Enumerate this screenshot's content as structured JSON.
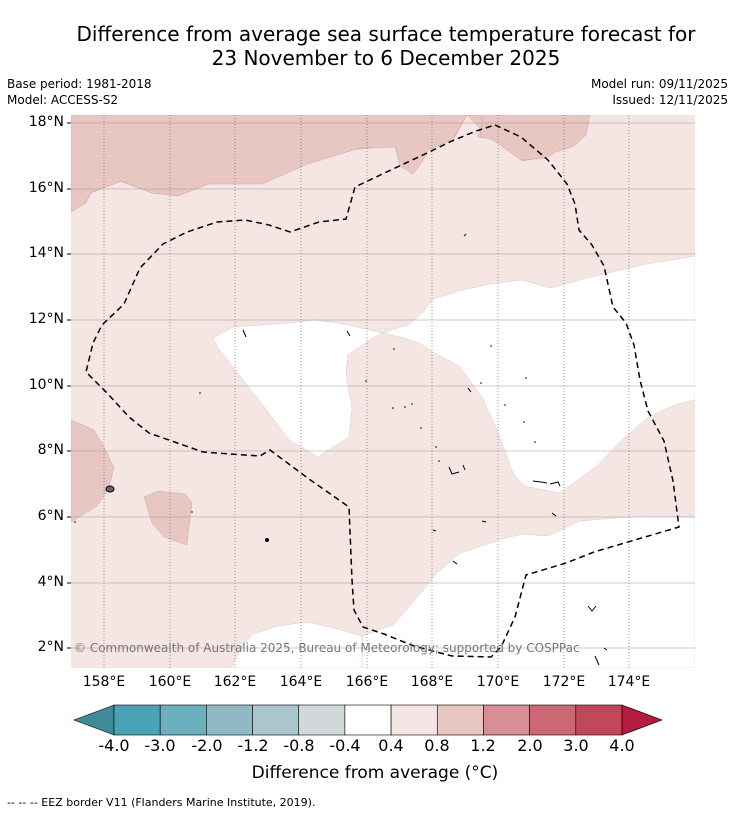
{
  "title_line1": "Difference from average sea surface temperature forecast for",
  "title_line2": "23 November to 6 December 2025",
  "base_period": "Base period: 1981-2018",
  "model": "Model: ACCESS-S2",
  "model_run": "Model run: 09/11/2025",
  "issued": "Issued: 12/11/2025",
  "lat_labels": [
    "18°N",
    "16°N",
    "14°N",
    "12°N",
    "10°N",
    "8°N",
    "6°N",
    "4°N",
    "2°N"
  ],
  "lon_labels": [
    "158°E",
    "160°E",
    "162°E",
    "164°E",
    "166°E",
    "168°E",
    "170°E",
    "172°E",
    "174°E"
  ],
  "copyright": "© Commonwealth of Australia 2025, Bureau of Meteorology; supported by COSPPac",
  "colorbar": {
    "title": "Difference from average (°C)",
    "tick_labels": [
      "-4.0",
      "-3.0",
      "-2.0",
      "-1.2",
      "-0.8",
      "-0.4",
      "0.4",
      "0.8",
      "1.2",
      "2.0",
      "3.0",
      "4.0"
    ],
    "colors": [
      "#3f8a96",
      "#4aa3b5",
      "#6bafbf",
      "#8fbac5",
      "#a8c6cb",
      "#d0d8da",
      "#ffffff",
      "#f5e6e4",
      "#e8c6c2",
      "#d98e96",
      "#cc6873",
      "#c04858",
      "#b31b3f"
    ]
  },
  "legend_note": "--  --  -- EEZ border V11 (Flanders Marine Institute, 2019).",
  "map_colors": {
    "warm_light": "#f5e6e4",
    "warm_medium": "#e8c6c2",
    "neutral": "#ffffff"
  },
  "map_data": {
    "lon_range": [
      157.0,
      176.0
    ],
    "lat_range": [
      1.4,
      18.4
    ],
    "regions": [
      {
        "category": "0.4 to 0.8",
        "area": "northern strip, 16-18°N, west of 169°E"
      },
      {
        "category": "0.4 to 0.8",
        "area": "northeast near 170-172°E, 17-18°N"
      },
      {
        "category": "0.4 to 0.8",
        "area": "western edge near 157-158°E, 7-9°N"
      },
      {
        "category": "0.4 to 0.8",
        "area": "patch near 159.5-160.7°E, 5.5-6.7°N"
      },
      {
        "category": "-0.4 to 0.4",
        "area": "central area near 162-166°E, 8-12°N"
      },
      {
        "category": "-0.4 to 0.4",
        "area": "eastern area near 168-176°E, 6-13°N"
      },
      {
        "category": "-0.4 to 0.4",
        "area": "southeast near 167-176°E, 1.5-6°N"
      },
      {
        "category": "-0.4 to 0.4",
        "area": "southwest near 162°E, 1.5°N"
      }
    ]
  }
}
